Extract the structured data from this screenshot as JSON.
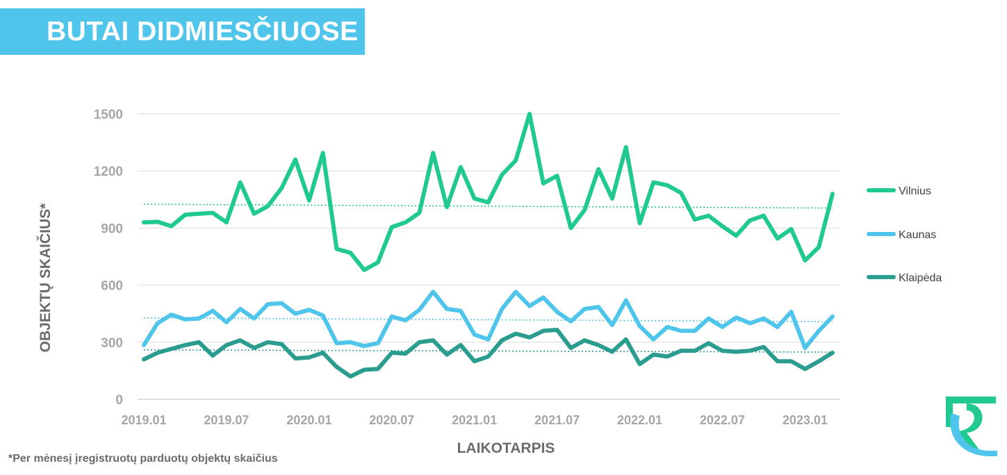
{
  "header": {
    "title": "BUTAI DIDMIESČIUOSE"
  },
  "footnote": "*Per mėnesį įregistruotų parduotų objektų skaičius",
  "logo": {
    "icon": "rc-logo-icon",
    "colors": [
      "#1fc98f",
      "#4fc5ec"
    ]
  },
  "chart_data": {
    "type": "line",
    "xlabel": "LAIKOTARPIS",
    "ylabel": "OBJEKTŲ SKAIČIUS*",
    "ylim": [
      0,
      1500
    ],
    "yticks": [
      0,
      300,
      600,
      900,
      1200,
      1500
    ],
    "grid": true,
    "legend_position": "right",
    "x_tick_labels": [
      "2019.01",
      "2019.07",
      "2020.01",
      "2020.07",
      "2021.01",
      "2021.07",
      "2022.01",
      "2022.07",
      "2023.01"
    ],
    "x_tick_indices": [
      0,
      6,
      12,
      18,
      24,
      30,
      36,
      42,
      48
    ],
    "x": [
      "2019.01",
      "2019.02",
      "2019.03",
      "2019.04",
      "2019.05",
      "2019.06",
      "2019.07",
      "2019.08",
      "2019.09",
      "2019.10",
      "2019.11",
      "2019.12",
      "2020.01",
      "2020.02",
      "2020.03",
      "2020.04",
      "2020.05",
      "2020.06",
      "2020.07",
      "2020.08",
      "2020.09",
      "2020.10",
      "2020.11",
      "2020.12",
      "2021.01",
      "2021.02",
      "2021.03",
      "2021.04",
      "2021.05",
      "2021.06",
      "2021.07",
      "2021.08",
      "2021.09",
      "2021.10",
      "2021.11",
      "2021.12",
      "2022.01",
      "2022.02",
      "2022.03",
      "2022.04",
      "2022.05",
      "2022.06",
      "2022.07",
      "2022.08",
      "2022.09",
      "2022.10",
      "2022.11",
      "2022.12",
      "2023.01",
      "2023.02",
      "2023.03"
    ],
    "series": [
      {
        "name": "Vilnius",
        "color": "#1fc98f",
        "values": [
          930,
          933,
          910,
          970,
          975,
          980,
          930,
          1140,
          975,
          1015,
          1110,
          1260,
          1045,
          1295,
          790,
          770,
          680,
          720,
          905,
          930,
          980,
          1295,
          1010,
          1220,
          1055,
          1035,
          1180,
          1255,
          1500,
          1135,
          1175,
          900,
          995,
          1210,
          1055,
          1325,
          925,
          1140,
          1125,
          1085,
          945,
          965,
          910,
          860,
          940,
          965,
          845,
          895,
          730,
          800,
          1080
        ],
        "trend": [
          1025,
          1005
        ]
      },
      {
        "name": "Kaunas",
        "color": "#4fc5ec",
        "values": [
          285,
          400,
          445,
          420,
          425,
          465,
          405,
          475,
          425,
          500,
          505,
          450,
          470,
          440,
          295,
          300,
          280,
          295,
          435,
          415,
          470,
          565,
          475,
          465,
          340,
          315,
          475,
          565,
          490,
          535,
          460,
          410,
          475,
          485,
          390,
          520,
          385,
          315,
          380,
          360,
          360,
          425,
          380,
          430,
          400,
          425,
          380,
          460,
          270,
          360,
          435
        ],
        "trend": [
          428,
          408
        ]
      },
      {
        "name": "Klaipėda",
        "color": "#2a9d8f",
        "values": [
          210,
          245,
          265,
          285,
          300,
          230,
          285,
          310,
          270,
          300,
          290,
          215,
          220,
          245,
          170,
          120,
          155,
          160,
          245,
          240,
          300,
          310,
          235,
          285,
          200,
          225,
          310,
          345,
          325,
          360,
          365,
          270,
          310,
          285,
          250,
          315,
          185,
          235,
          225,
          255,
          255,
          295,
          255,
          250,
          255,
          275,
          200,
          200,
          160,
          200,
          245
        ],
        "trend": [
          260,
          248
        ]
      }
    ]
  }
}
